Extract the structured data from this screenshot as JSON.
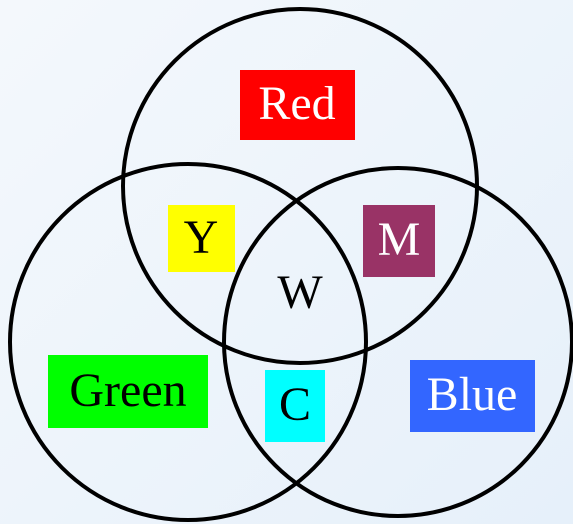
{
  "diagram": {
    "type": "venn",
    "regions": [
      {
        "label": "Red"
      },
      {
        "label": "Green"
      },
      {
        "label": "Blue"
      },
      {
        "label": "Y"
      },
      {
        "label": "M"
      },
      {
        "label": "C"
      },
      {
        "label": "W"
      }
    ]
  }
}
